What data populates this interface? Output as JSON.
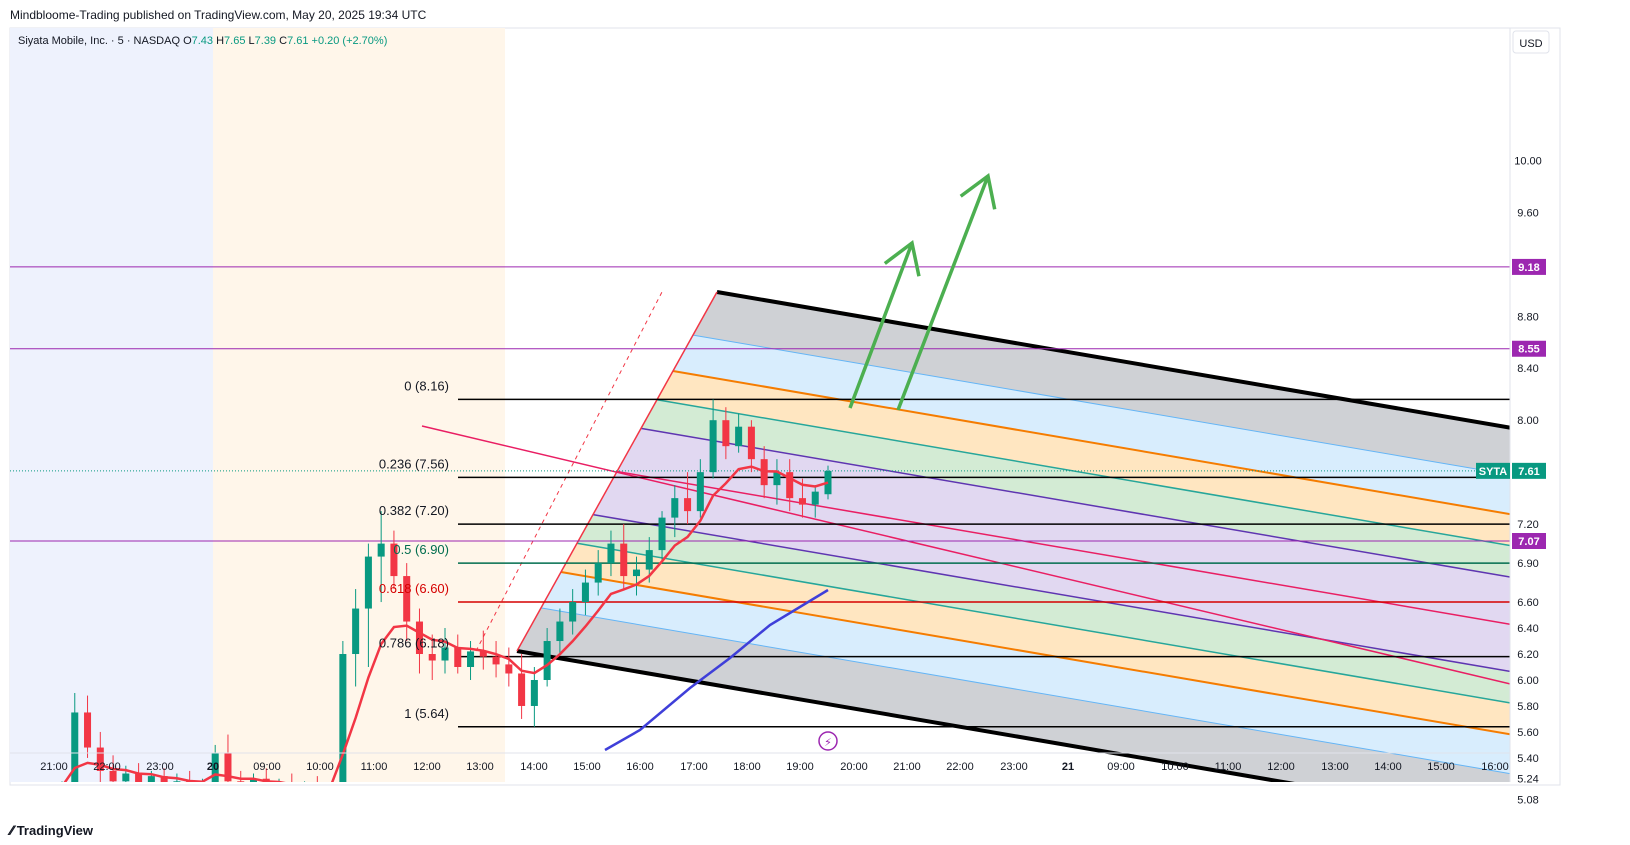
{
  "publisher": "Mindbloome-Trading published on TradingView.com, May 20, 2025 19:34 UTC",
  "symbol_header": {
    "name": "Siyata Mobile, Inc. · 5 · NASDAQ",
    "open_label": "O",
    "open": "7.43",
    "high_label": "H",
    "high": "7.65",
    "low_label": "L",
    "low": "7.39",
    "close_label": "C",
    "close": "7.61",
    "change": "+0.20 (+2.70%)"
  },
  "currency": "USD",
  "brand": "TradingView",
  "colors": {
    "up": "#089981",
    "down": "#f23645",
    "ema": "#f23645",
    "accent_purple": "#9c27b0",
    "pitchfork_gray": "#b2b5be",
    "pitchfork_blue": "#bbdefb",
    "pitchfork_orange": "#ffcc80",
    "pitchfork_green": "#a5d6a7",
    "pitchfork_violet": "#d1c4e9",
    "arrow_green": "#4caf50"
  },
  "chart_data": {
    "type": "candlestick",
    "symbol": "SYTA",
    "interval": "5",
    "ylim": [
      5.08,
      10.4
    ],
    "y_ticks": [
      5.08,
      5.24,
      5.4,
      5.6,
      5.8,
      6.0,
      6.2,
      6.4,
      6.6,
      6.9,
      7.2,
      8.0,
      8.4,
      8.8,
      9.6,
      10.0
    ],
    "y_tick_labels": [
      "5.08",
      "5.24",
      "5.40",
      "5.60",
      "5.80",
      "6.00",
      "6.20",
      "6.40",
      "6.60",
      "6.90",
      "7.20",
      "8.00",
      "8.40",
      "8.80",
      "9.60",
      "10.00"
    ],
    "x_ticks": [
      "21:00",
      "22:00",
      "23:00",
      "20",
      "09:00",
      "10:00",
      "11:00",
      "12:00",
      "13:00",
      "14:00",
      "15:00",
      "16:00",
      "17:00",
      "18:00",
      "19:00",
      "20:00",
      "21:00",
      "22:00",
      "23:00",
      "21",
      "09:00",
      "10:00",
      "11:00",
      "12:00",
      "13:00",
      "14:00",
      "15:00",
      "16:00"
    ],
    "price_tags": [
      {
        "value": 9.18,
        "label": "9.18",
        "color": "#9c27b0"
      },
      {
        "value": 8.55,
        "label": "8.55",
        "color": "#9c27b0"
      },
      {
        "value": 7.07,
        "label": "7.07",
        "color": "#9c27b0"
      },
      {
        "value": 7.61,
        "label": "7.61",
        "symbol": "SYTA",
        "color": "#089981"
      }
    ],
    "horizontal_lines": [
      {
        "value": 9.18,
        "color": "#9c27b0"
      },
      {
        "value": 8.55,
        "color": "#9c27b0"
      },
      {
        "value": 7.07,
        "color": "#9c27b0"
      }
    ],
    "fibonacci": [
      {
        "level": "0",
        "price": "8.16",
        "value": 8.16,
        "color": "#000000",
        "label": "0 (8.16)"
      },
      {
        "level": "0.236",
        "price": "7.56",
        "value": 7.56,
        "color": "#000000",
        "label": "0.236 (7.56)"
      },
      {
        "level": "0.382",
        "price": "7.20",
        "value": 7.2,
        "color": "#000000",
        "label": "0.382 (7.20)"
      },
      {
        "level": "0.5",
        "price": "6.90",
        "value": 6.9,
        "color": "#006d4e",
        "label": "0.5 (6.90)"
      },
      {
        "level": "0.618",
        "price": "6.60",
        "value": 6.6,
        "color": "#d50000",
        "label": "0.618 (6.60)"
      },
      {
        "level": "0.786",
        "price": "6.18",
        "value": 6.18,
        "color": "#000000",
        "label": "0.786 (6.18)"
      },
      {
        "level": "1",
        "price": "5.64",
        "value": 5.64,
        "color": "#000000",
        "label": "1 (5.64)"
      }
    ],
    "candles": [
      {
        "o": 5.14,
        "h": 5.22,
        "l": 5.08,
        "c": 5.18
      },
      {
        "o": 5.18,
        "h": 5.9,
        "l": 5.1,
        "c": 5.75
      },
      {
        "o": 5.75,
        "h": 5.88,
        "l": 5.4,
        "c": 5.48
      },
      {
        "o": 5.48,
        "h": 5.6,
        "l": 5.2,
        "c": 5.3
      },
      {
        "o": 5.3,
        "h": 5.42,
        "l": 5.14,
        "c": 5.22
      },
      {
        "o": 5.22,
        "h": 5.34,
        "l": 5.12,
        "c": 5.28
      },
      {
        "o": 5.28,
        "h": 5.36,
        "l": 5.16,
        "c": 5.2
      },
      {
        "o": 5.2,
        "h": 5.3,
        "l": 5.12,
        "c": 5.26
      },
      {
        "o": 5.26,
        "h": 5.32,
        "l": 5.15,
        "c": 5.18
      },
      {
        "o": 5.18,
        "h": 5.28,
        "l": 5.1,
        "c": 5.22
      },
      {
        "o": 5.22,
        "h": 5.3,
        "l": 5.12,
        "c": 5.16
      },
      {
        "o": 5.16,
        "h": 5.24,
        "l": 5.1,
        "c": 5.2
      },
      {
        "o": 5.2,
        "h": 5.5,
        "l": 5.14,
        "c": 5.44
      },
      {
        "o": 5.44,
        "h": 5.58,
        "l": 5.18,
        "c": 5.22
      },
      {
        "o": 5.22,
        "h": 5.3,
        "l": 5.12,
        "c": 5.18
      },
      {
        "o": 5.18,
        "h": 5.28,
        "l": 5.12,
        "c": 5.24
      },
      {
        "o": 5.24,
        "h": 5.32,
        "l": 5.14,
        "c": 5.16
      },
      {
        "o": 5.16,
        "h": 5.24,
        "l": 5.1,
        "c": 5.2
      },
      {
        "o": 5.2,
        "h": 5.28,
        "l": 5.12,
        "c": 5.14
      },
      {
        "o": 5.14,
        "h": 5.22,
        "l": 5.08,
        "c": 5.18
      },
      {
        "o": 5.18,
        "h": 5.26,
        "l": 5.1,
        "c": 5.12
      },
      {
        "o": 5.12,
        "h": 5.2,
        "l": 5.08,
        "c": 5.16
      },
      {
        "o": 5.16,
        "h": 6.3,
        "l": 5.12,
        "c": 6.2
      },
      {
        "o": 6.2,
        "h": 6.7,
        "l": 5.95,
        "c": 6.55
      },
      {
        "o": 6.55,
        "h": 7.05,
        "l": 6.1,
        "c": 6.95
      },
      {
        "o": 6.95,
        "h": 7.3,
        "l": 6.6,
        "c": 7.05
      },
      {
        "o": 7.05,
        "h": 7.15,
        "l": 6.7,
        "c": 6.8
      },
      {
        "o": 6.8,
        "h": 6.9,
        "l": 6.3,
        "c": 6.45
      },
      {
        "o": 6.45,
        "h": 6.55,
        "l": 6.05,
        "c": 6.2
      },
      {
        "o": 6.2,
        "h": 6.35,
        "l": 6.0,
        "c": 6.15
      },
      {
        "o": 6.15,
        "h": 6.4,
        "l": 6.05,
        "c": 6.25
      },
      {
        "o": 6.25,
        "h": 6.35,
        "l": 6.05,
        "c": 6.1
      },
      {
        "o": 6.1,
        "h": 6.3,
        "l": 6.0,
        "c": 6.22
      },
      {
        "o": 6.22,
        "h": 6.38,
        "l": 6.08,
        "c": 6.18
      },
      {
        "o": 6.18,
        "h": 6.3,
        "l": 6.02,
        "c": 6.12
      },
      {
        "o": 6.12,
        "h": 6.25,
        "l": 5.95,
        "c": 6.05
      },
      {
        "o": 6.05,
        "h": 6.2,
        "l": 5.7,
        "c": 5.8
      },
      {
        "o": 5.8,
        "h": 6.1,
        "l": 5.64,
        "c": 6.0
      },
      {
        "o": 6.0,
        "h": 6.4,
        "l": 5.95,
        "c": 6.3
      },
      {
        "o": 6.3,
        "h": 6.55,
        "l": 6.2,
        "c": 6.45
      },
      {
        "o": 6.45,
        "h": 6.7,
        "l": 6.35,
        "c": 6.6
      },
      {
        "o": 6.6,
        "h": 6.85,
        "l": 6.5,
        "c": 6.75
      },
      {
        "o": 6.75,
        "h": 7.0,
        "l": 6.65,
        "c": 6.9
      },
      {
        "o": 6.9,
        "h": 7.15,
        "l": 6.8,
        "c": 7.05
      },
      {
        "o": 7.05,
        "h": 7.2,
        "l": 6.7,
        "c": 6.8
      },
      {
        "o": 6.8,
        "h": 6.95,
        "l": 6.65,
        "c": 6.85
      },
      {
        "o": 6.85,
        "h": 7.1,
        "l": 6.75,
        "c": 7.0
      },
      {
        "o": 7.0,
        "h": 7.3,
        "l": 6.9,
        "c": 7.25
      },
      {
        "o": 7.25,
        "h": 7.5,
        "l": 7.1,
        "c": 7.4
      },
      {
        "o": 7.4,
        "h": 7.6,
        "l": 7.2,
        "c": 7.3
      },
      {
        "o": 7.3,
        "h": 7.7,
        "l": 7.25,
        "c": 7.6
      },
      {
        "o": 7.6,
        "h": 8.16,
        "l": 7.55,
        "c": 8.0
      },
      {
        "o": 8.0,
        "h": 8.1,
        "l": 7.7,
        "c": 7.8
      },
      {
        "o": 7.8,
        "h": 8.05,
        "l": 7.75,
        "c": 7.95
      },
      {
        "o": 7.95,
        "h": 8.0,
        "l": 7.6,
        "c": 7.7
      },
      {
        "o": 7.7,
        "h": 7.8,
        "l": 7.4,
        "c": 7.5
      },
      {
        "o": 7.5,
        "h": 7.7,
        "l": 7.35,
        "c": 7.6
      },
      {
        "o": 7.6,
        "h": 7.7,
        "l": 7.3,
        "c": 7.4
      },
      {
        "o": 7.4,
        "h": 7.55,
        "l": 7.25,
        "c": 7.35
      },
      {
        "o": 7.35,
        "h": 7.5,
        "l": 7.25,
        "c": 7.45
      },
      {
        "o": 7.43,
        "h": 7.65,
        "l": 7.39,
        "c": 7.61
      }
    ]
  }
}
